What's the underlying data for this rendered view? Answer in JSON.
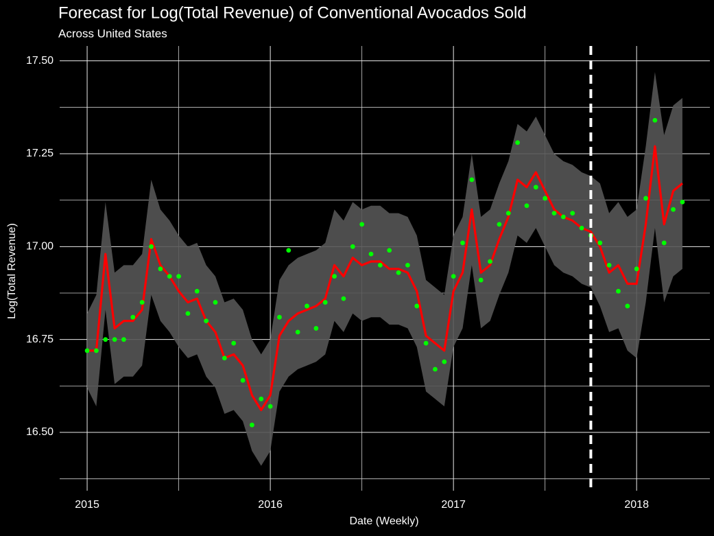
{
  "chart_data": {
    "type": "forecast",
    "title": "Forecast for Log(Total Revenue) of Conventional Avocados Sold",
    "subtitle": "Across United States",
    "x_label": "Date (Weekly)",
    "y_label": "Log(Total Revenue)",
    "xlim": [
      2014.85,
      2018.4
    ],
    "ylim": [
      16.343,
      17.54
    ],
    "xticks": [
      2015,
      2016,
      2017,
      2018
    ],
    "yticks": [
      {
        "value": 16.5,
        "label": "16.50"
      },
      {
        "value": 16.75,
        "label": "16.75"
      },
      {
        "value": 17.0,
        "label": "17.00"
      },
      {
        "value": 17.25,
        "label": "17.25"
      },
      {
        "value": 17.5,
        "label": "17.50"
      }
    ],
    "x_minor_grid": [
      2015.5,
      2016.5,
      2017.5
    ],
    "y_minor_grid": [
      16.375,
      16.625,
      16.875,
      17.125,
      17.375
    ],
    "grid": true,
    "forecast_start": 2017.75,
    "x": [
      2015.0,
      2015.05,
      2015.1,
      2015.15,
      2015.2,
      2015.25,
      2015.3,
      2015.35,
      2015.4,
      2015.45,
      2015.5,
      2015.55,
      2015.6,
      2015.65,
      2015.7,
      2015.75,
      2015.8,
      2015.85,
      2015.9,
      2015.95,
      2016.0,
      2016.05,
      2016.1,
      2016.15,
      2016.2,
      2016.25,
      2016.3,
      2016.35,
      2016.4,
      2016.45,
      2016.5,
      2016.55,
      2016.6,
      2016.65,
      2016.7,
      2016.75,
      2016.8,
      2016.85,
      2016.9,
      2016.95,
      2017.0,
      2017.05,
      2017.1,
      2017.15,
      2017.2,
      2017.25,
      2017.3,
      2017.35,
      2017.4,
      2017.45,
      2017.5,
      2017.55,
      2017.6,
      2017.65,
      2017.7,
      2017.75,
      2017.8,
      2017.85,
      2017.9,
      2017.95,
      2018.0,
      2018.05,
      2018.1,
      2018.15,
      2018.2,
      2018.25
    ],
    "band": {
      "color": "#555555",
      "lower": [
        16.62,
        16.57,
        16.83,
        16.63,
        16.65,
        16.65,
        16.68,
        16.87,
        16.8,
        16.77,
        16.73,
        16.7,
        16.71,
        16.65,
        16.62,
        16.55,
        16.56,
        16.53,
        16.45,
        16.41,
        16.45,
        16.61,
        16.65,
        16.67,
        16.68,
        16.69,
        16.71,
        16.8,
        16.77,
        16.82,
        16.8,
        16.81,
        16.81,
        16.79,
        16.79,
        16.78,
        16.73,
        16.61,
        16.59,
        16.57,
        16.73,
        16.78,
        16.95,
        16.78,
        16.8,
        16.87,
        16.93,
        17.03,
        17.01,
        17.05,
        17.0,
        16.95,
        16.93,
        16.92,
        16.9,
        16.89,
        16.84,
        16.77,
        16.78,
        16.72,
        16.7,
        16.85,
        17.05,
        16.85,
        16.92,
        16.94
      ],
      "upper": [
        16.82,
        16.87,
        17.12,
        16.93,
        16.95,
        16.95,
        16.98,
        17.18,
        17.1,
        17.07,
        17.03,
        17.0,
        17.01,
        16.95,
        16.92,
        16.85,
        16.86,
        16.83,
        16.75,
        16.71,
        16.75,
        16.91,
        16.95,
        16.97,
        16.98,
        16.99,
        17.01,
        17.1,
        17.07,
        17.12,
        17.1,
        17.11,
        17.11,
        17.09,
        17.09,
        17.08,
        17.03,
        16.91,
        16.89,
        16.87,
        17.03,
        17.08,
        17.25,
        17.08,
        17.1,
        17.17,
        17.23,
        17.33,
        17.31,
        17.35,
        17.3,
        17.25,
        17.23,
        17.22,
        17.2,
        17.19,
        17.17,
        17.09,
        17.12,
        17.08,
        17.1,
        17.27,
        17.47,
        17.3,
        17.38,
        17.4
      ]
    },
    "fitted": {
      "color": "#ff0000",
      "values": [
        16.72,
        16.72,
        16.98,
        16.78,
        16.8,
        16.8,
        16.83,
        17.02,
        16.95,
        16.92,
        16.88,
        16.85,
        16.86,
        16.8,
        16.77,
        16.7,
        16.71,
        16.68,
        16.6,
        16.56,
        16.6,
        16.76,
        16.8,
        16.82,
        16.83,
        16.84,
        16.86,
        16.95,
        16.92,
        16.97,
        16.95,
        16.96,
        16.96,
        16.94,
        16.94,
        16.93,
        16.88,
        16.76,
        16.74,
        16.72,
        16.88,
        16.93,
        17.1,
        16.93,
        16.95,
        17.02,
        17.08,
        17.18,
        17.16,
        17.2,
        17.15,
        17.1,
        17.08,
        17.07,
        17.05,
        17.04,
        17.0,
        16.93,
        16.95,
        16.9,
        16.9,
        17.06,
        17.27,
        17.06,
        17.15,
        17.17
      ]
    },
    "actual": {
      "color": "#00ff00",
      "values": [
        16.72,
        16.72,
        16.75,
        16.75,
        16.75,
        16.81,
        16.85,
        17.0,
        16.94,
        16.92,
        16.92,
        16.82,
        16.88,
        16.8,
        16.85,
        16.7,
        16.74,
        16.64,
        16.52,
        16.59,
        16.57,
        16.81,
        16.99,
        16.77,
        16.84,
        16.78,
        16.85,
        16.92,
        16.86,
        17.0,
        17.06,
        16.98,
        16.95,
        16.99,
        16.93,
        16.95,
        16.84,
        16.74,
        16.67,
        16.69,
        16.92,
        17.01,
        17.18,
        16.91,
        16.96,
        17.06,
        17.09,
        17.28,
        17.11,
        17.16,
        17.13,
        17.09,
        17.08,
        17.09,
        17.05,
        17.03,
        17.01,
        16.95,
        16.88,
        16.84,
        16.94,
        17.13,
        17.34,
        17.01,
        17.1,
        17.12
      ]
    }
  }
}
